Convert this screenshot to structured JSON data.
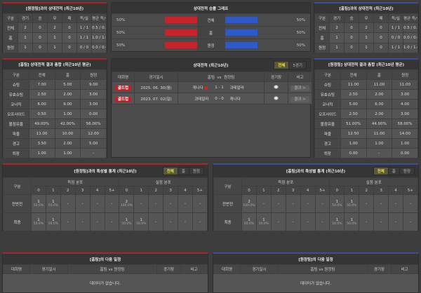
{
  "colors": {
    "home": "#c8232b",
    "away": "#2f58c9",
    "accent": "#f2e23a"
  },
  "h2h_left": {
    "title": "[원정팀]과의 상대전적 (최근10년)",
    "headers": [
      "구분",
      "경기",
      "승",
      "무",
      "패",
      "득/실",
      "평균 득/실"
    ],
    "rows": [
      [
        "전체",
        "2",
        "0",
        "2",
        "0",
        "1 / 1",
        "0.5 / 0.5"
      ],
      [
        "홈",
        "1",
        "0",
        "1",
        "0",
        "1 / 1",
        "1.0 / 1.0"
      ],
      [
        "원정",
        "1",
        "0",
        "1",
        "0",
        "0 / 0",
        "0.0 / 0.0"
      ]
    ]
  },
  "h2h_right": {
    "title": "[홈팀]과의 상대전적 (최근10년)",
    "headers": [
      "구분",
      "경기",
      "승",
      "무",
      "패",
      "득/실",
      "평균 득/실"
    ],
    "rows": [
      [
        "전체",
        "2",
        "0",
        "2",
        "0",
        "1 / 1",
        "0.5 / 0.5"
      ],
      [
        "홈",
        "1",
        "0",
        "1",
        "0",
        "0 / 0",
        "0.0 / 0.0"
      ],
      [
        "원정",
        "1",
        "0",
        "1",
        "0",
        "1 / 1",
        "1.0 / 1.0"
      ]
    ]
  },
  "graph": {
    "title": "상대전적 승률 그래프",
    "rows": [
      {
        "label": "전체",
        "left": "50%",
        "right": "50%",
        "left_value": 50,
        "right_value": 50
      },
      {
        "label": "홈",
        "left": "50%",
        "right": "50%",
        "left_value": 50,
        "right_value": 50
      },
      {
        "label": "원정",
        "left": "50%",
        "right": "50%",
        "left_value": 50,
        "right_value": 50
      }
    ]
  },
  "avg_left": {
    "title": "[홈팀] 상대전적 결과 총합 (최근10년 평균)",
    "headers": [
      "구분",
      "전체",
      "홈",
      "원정"
    ],
    "rows": [
      [
        "슈팅",
        "7.00",
        "5.00",
        "9.00"
      ],
      [
        "유효슈팅",
        "2.50",
        "2.00",
        "3.00"
      ],
      [
        "코너킥",
        "6.00",
        "9.00",
        "3.00"
      ],
      [
        "오프사이드",
        "0.50",
        "1.00",
        "0.00"
      ],
      [
        "볼점유율",
        "49.00%",
        "42.00%",
        "56.00%"
      ],
      [
        "파울",
        "11.00",
        "10.00",
        "12.00"
      ],
      [
        "경고",
        "3.50",
        "2.00",
        "5.00"
      ],
      [
        "퇴장",
        "1.00",
        "1.00",
        "-"
      ]
    ]
  },
  "avg_right": {
    "title": "[원정팀] 상대전적 결과 총합 (최근10년 평균)",
    "headers": [
      "구분",
      "전체",
      "홈",
      "원정"
    ],
    "rows": [
      [
        "슈팅",
        "11.00",
        "11.00",
        "11.00"
      ],
      [
        "유효슈팅",
        "2.50",
        "2.00",
        "3.00"
      ],
      [
        "코너킥",
        "5.00",
        "6.00",
        "4.00"
      ],
      [
        "오프사이드",
        "2.50",
        "2.00",
        "3.00"
      ],
      [
        "볼점유율",
        "51.00%",
        "44.00%",
        "58.00%"
      ],
      [
        "파울",
        "12.50",
        "11.00",
        "14.00"
      ],
      [
        "경고",
        "1.00",
        "1.00",
        "1.00"
      ],
      [
        "퇴장",
        "0.00",
        "-",
        "0.00"
      ]
    ]
  },
  "matches": {
    "title": "상대전적 (최근10년)",
    "tabs": [
      "전체",
      "5경기"
    ],
    "active_tab": "전체",
    "headers": {
      "league": "대회명",
      "date": "경기일시",
      "home": "홈팀",
      "vs": "vs",
      "away": "원정팀",
      "venue": "경기장",
      "note": "비고"
    },
    "rows": [
      {
        "league": "골드컵",
        "date": "2025. 06. 30(월)",
        "home": "캐나다",
        "home_card": true,
        "score": "1 - 1",
        "away": "과테말라",
        "venue_icon": "stadium-icon",
        "button": "결과 >"
      },
      {
        "league": "골드컵",
        "date": "2023. 07. 02(일)",
        "home": "과테말라",
        "home_card": false,
        "score": "0 - 0",
        "away": "캐나다",
        "venue_icon": "stadium-icon",
        "button": "결과 >"
      }
    ]
  },
  "feat_left": {
    "title": "[원정팀]과의 특성별 통계 (최근10년)",
    "tabs": [
      "전체",
      "홈",
      "원정"
    ],
    "active_tab": "전체",
    "col_label": "구분",
    "groups": [
      "득점 분포",
      "실점 분포"
    ],
    "goals": [
      "0",
      "1",
      "2",
      "3",
      "4",
      "5+"
    ],
    "rows": [
      {
        "label": "전반전",
        "cells": [
          [
            "1",
            "50.0%"
          ],
          [
            "1",
            "50.0%"
          ],
          [
            "-"
          ],
          [
            "-"
          ],
          [
            "-"
          ],
          [
            "-"
          ],
          [
            "2",
            "100.0%"
          ],
          [
            "-"
          ],
          [
            "-"
          ],
          [
            "-"
          ],
          [
            "-"
          ],
          [
            "-"
          ]
        ]
      },
      {
        "label": "최종",
        "cells": [
          [
            "1",
            "50.0%"
          ],
          [
            "1",
            "50.0%"
          ],
          [
            "-"
          ],
          [
            "-"
          ],
          [
            "-"
          ],
          [
            "-"
          ],
          [
            "1",
            "50.0%"
          ],
          [
            "1",
            "50.0%"
          ],
          [
            "-"
          ],
          [
            "-"
          ],
          [
            "-"
          ],
          [
            "-"
          ]
        ]
      }
    ]
  },
  "feat_right": {
    "title": "[홈팀]과의 특성별 통계 (최근10년)",
    "tabs": [
      "전체",
      "홈",
      "원정"
    ],
    "active_tab": "전체",
    "col_label": "구분",
    "groups": [
      "득점 분포",
      "실점 분포"
    ],
    "goals": [
      "0",
      "1",
      "2",
      "3",
      "4",
      "5+"
    ],
    "rows": [
      {
        "label": "전반전",
        "cells": [
          [
            "2",
            "100.0%"
          ],
          [
            "-"
          ],
          [
            "-"
          ],
          [
            "-"
          ],
          [
            "-"
          ],
          [
            "-"
          ],
          [
            "1",
            "50.0%"
          ],
          [
            "1",
            "50.0%"
          ],
          [
            "-"
          ],
          [
            "-"
          ],
          [
            "-"
          ],
          [
            "-"
          ]
        ]
      },
      {
        "label": "최종",
        "cells": [
          [
            "1",
            "50.0%"
          ],
          [
            "1",
            "50.0%"
          ],
          [
            "-"
          ],
          [
            "-"
          ],
          [
            "-"
          ],
          [
            "-"
          ],
          [
            "1",
            "50.0%"
          ],
          [
            "1",
            "50.0%"
          ],
          [
            "-"
          ],
          [
            "-"
          ],
          [
            "-"
          ],
          [
            "-"
          ]
        ]
      }
    ]
  },
  "next_left": {
    "title": "[홈팀]의 다음 일정",
    "headers": [
      "대회명",
      "경기일시",
      "홈팀  vs  원정팀",
      "경기장",
      "비고"
    ],
    "empty": "데이터가 없습니다."
  },
  "next_right": {
    "title": "[원정팀]의 다음 일정",
    "headers": [
      "대회명",
      "경기일시",
      "홈팀  vs  원정팀",
      "경기장",
      "비고"
    ],
    "empty": "데이터가 없습니다."
  }
}
